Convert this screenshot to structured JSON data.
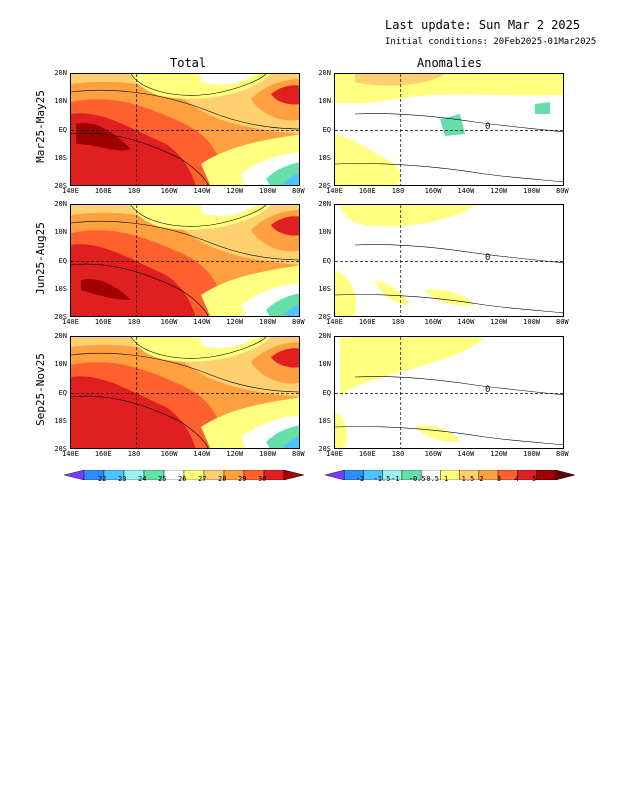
{
  "header": {
    "last_update": "Last update: Sun Mar  2 2025",
    "initial_conditions": "Initial conditions: 20Feb2025-01Mar2025"
  },
  "columns": {
    "total": "Total",
    "anomalies": "Anomalies"
  },
  "rows": [
    {
      "label": "Mar25-May25"
    },
    {
      "label": "Jun25-Aug25"
    },
    {
      "label": "Sep25-Nov25"
    }
  ],
  "axes": {
    "lat_ticks": [
      "20N",
      "10N",
      "EQ",
      "10S",
      "20S"
    ],
    "lon_ticks": [
      "140E",
      "160E",
      "180",
      "160W",
      "140W",
      "120W",
      "100W",
      "80W"
    ]
  },
  "colorbars": {
    "total": {
      "labels": [
        "22",
        "23",
        "24",
        "25",
        "26",
        "27",
        "28",
        "29",
        "30"
      ],
      "colors": [
        "#7a3cff",
        "#2f8cff",
        "#4fc3ff",
        "#9ff0f0",
        "#66e0a8",
        "#ffffff",
        "#ffff80",
        "#ffd070",
        "#ffa040",
        "#ff6030",
        "#e02020",
        "#a00000"
      ]
    },
    "anomalies": {
      "labels": [
        "-2",
        "-1.5",
        "-1",
        "-0.5",
        "0.5",
        "1",
        "1.5",
        "2",
        "3",
        "4",
        "5"
      ],
      "colors": [
        "#7a3cff",
        "#2f8cff",
        "#4fc3ff",
        "#9ff0f0",
        "#66e0a8",
        "#ffffff",
        "#ffff80",
        "#ffd070",
        "#ffa040",
        "#ff6030",
        "#e02020",
        "#a00000",
        "#600000"
      ]
    }
  },
  "anomaly_contour_label": "0"
}
